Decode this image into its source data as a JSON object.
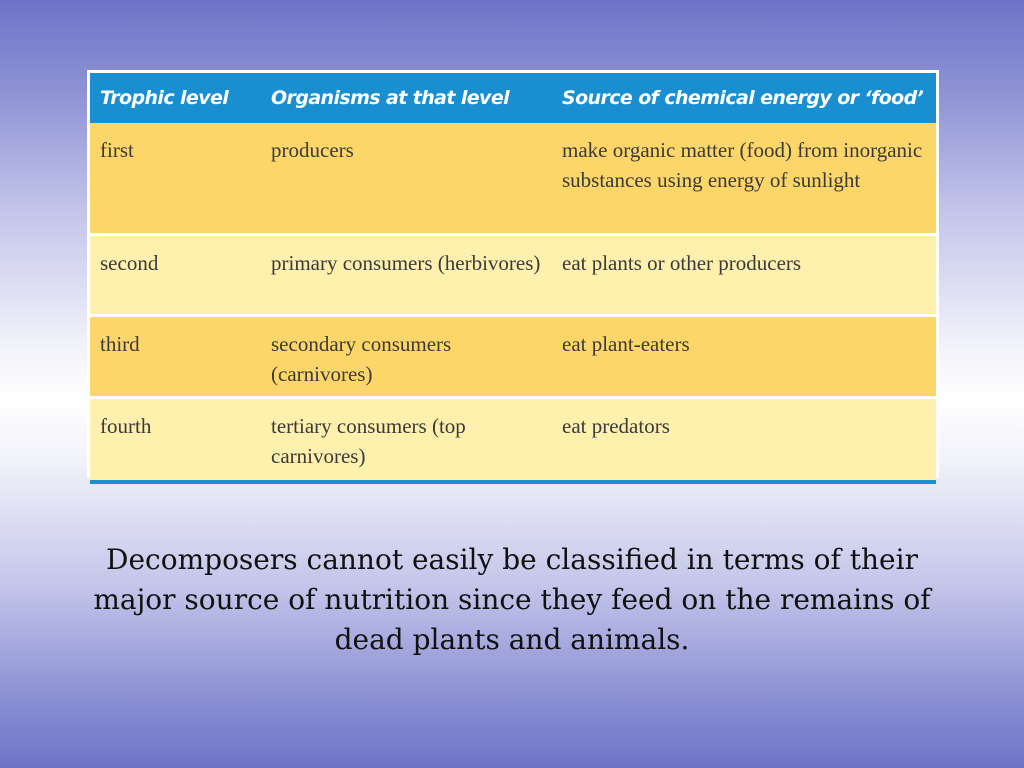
{
  "table": {
    "headers": [
      "Trophic level",
      "Organisms at that level",
      "Source of chemical energy or ‘food’"
    ],
    "rows": [
      {
        "level": "first",
        "organisms": "producers",
        "source": "make organic matter (food) from inorganic substances using energy of sunlight"
      },
      {
        "level": "second",
        "organisms": "primary consumers (herbivores)",
        "source": "eat plants or other producers"
      },
      {
        "level": "third",
        "organisms": "secondary consumers (carnivores)",
        "source": "eat plant-eaters"
      },
      {
        "level": "fourth",
        "organisms": "tertiary consumers (top carnivores)",
        "source": "eat predators"
      }
    ]
  },
  "caption": "Decomposers cannot easily be classified in terms of their major source of nutrition since they feed on the remains of dead plants and animals.",
  "colors": {
    "header_bg": "#1a8fd0",
    "row_dark": "#fdd66a",
    "row_light": "#fff0ad",
    "background_edge": "#6f73c8"
  }
}
